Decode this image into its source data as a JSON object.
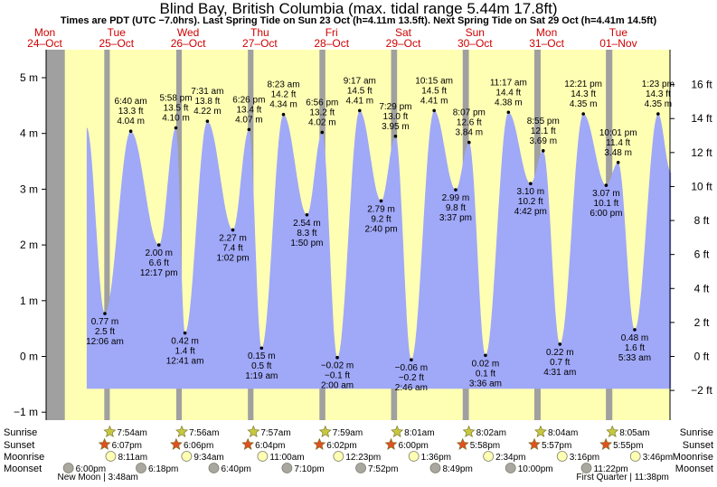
{
  "chart_data": {
    "type": "area",
    "title": "Blind Bay, British Columbia (max. tidal range 5.44m 17.8ft)",
    "subtitle": "Times are PDT (UTC −7.0hrs). Last Spring Tide on Sun 23 Oct (h=4.11m 13.5ft). Next Spring Tide on Sat 29 Oct (h=4.41m 14.5ft)",
    "y_left": {
      "range": [
        -1.2,
        5.3
      ],
      "ticks": [
        -1,
        0,
        1,
        2,
        3,
        4,
        5
      ],
      "tick_labels": [
        "−1 m",
        "0 m",
        "1 m",
        "2 m",
        "3 m",
        "4 m",
        "5 m"
      ]
    },
    "y_right": {
      "ticks": [
        -2,
        0,
        2,
        4,
        6,
        8,
        10,
        12,
        14,
        16
      ],
      "tick_labels": [
        "−2 ft",
        "0 ft",
        "2 ft",
        "4 ft",
        "6 ft",
        "8 ft",
        "10 ft",
        "12 ft",
        "14 ft",
        "16 ft"
      ]
    },
    "x_days": [
      {
        "dow": "Mon",
        "date": "24–Oct",
        "x": 0
      },
      {
        "dow": "Tue",
        "date": "25–Oct",
        "x": 1
      },
      {
        "dow": "Wed",
        "date": "26–Oct",
        "x": 2
      },
      {
        "dow": "Thu",
        "date": "27–Oct",
        "x": 3
      },
      {
        "dow": "Fri",
        "date": "28–Oct",
        "x": 4
      },
      {
        "dow": "Sat",
        "date": "29–Oct",
        "x": 5
      },
      {
        "dow": "Sun",
        "date": "30–Oct",
        "x": 6
      },
      {
        "dow": "Mon",
        "date": "31–Oct",
        "x": 7
      },
      {
        "dow": "Tue",
        "date": "01–Nov",
        "x": 8
      }
    ],
    "daylight": [
      {
        "rise": -0.3,
        "set": 0.25
      },
      {
        "rise": 0.327,
        "set": 1.254
      },
      {
        "rise": 1.331,
        "set": 2.253
      },
      {
        "rise": 2.331,
        "set": 3.251
      },
      {
        "rise": 3.333,
        "set": 4.25
      },
      {
        "rise": 4.334,
        "set": 5.249
      },
      {
        "rise": 5.335,
        "set": 6.248
      },
      {
        "rise": 6.336,
        "set": 7.246
      },
      {
        "rise": 7.336,
        "set": 8.3
      }
    ],
    "tides": [
      {
        "x": 0.005,
        "m": 4.11,
        "labels": [],
        "type": "start"
      },
      {
        "x": 0.2583,
        "m": 0.77,
        "labels": [
          "0.77 m",
          "2.5 ft",
          "12:06 am"
        ],
        "type": "low"
      },
      {
        "x": 0.6194,
        "m": 4.04,
        "labels": [
          "6:40 am",
          "13.3 ft",
          "4.04 m"
        ],
        "type": "high"
      },
      {
        "x": 1.0118,
        "m": 2.0,
        "labels": [
          "2.00 m",
          "6.6 ft",
          "12:17 pm"
        ],
        "type": "low"
      },
      {
        "x": 1.2486,
        "m": 4.1,
        "labels": [
          "5:58 pm",
          "13.5 ft",
          "4.10 m"
        ],
        "type": "high"
      },
      {
        "x": 1.3757,
        "m": 0.42,
        "labels": [
          "0.42 m",
          "1.4 ft",
          "12:41 am"
        ],
        "type": "low"
      },
      {
        "x": 1.6882,
        "m": 4.22,
        "labels": [
          "7:31 am",
          "13.8 ft",
          "4.22 m"
        ],
        "type": "high"
      },
      {
        "x": 2.0431,
        "m": 2.27,
        "labels": [
          "2.27 m",
          "7.4 ft",
          "1:02 pm"
        ],
        "type": "low"
      },
      {
        "x": 2.2681,
        "m": 4.07,
        "labels": [
          "6:26 pm",
          "13.4 ft",
          "4.07 m"
        ],
        "type": "high"
      },
      {
        "x": 2.4438,
        "m": 0.15,
        "labels": [
          "0.15 m",
          "0.5 ft",
          "1:19 am"
        ],
        "type": "low"
      },
      {
        "x": 2.7493,
        "m": 4.34,
        "labels": [
          "8:23 am",
          "14.2 ft",
          "4.34 m"
        ],
        "type": "high"
      },
      {
        "x": 3.0764,
        "m": 2.54,
        "labels": [
          "2.54 m",
          "8.3 ft",
          "1:50 pm"
        ],
        "type": "low"
      },
      {
        "x": 3.2889,
        "m": 4.02,
        "labels": [
          "6:56 pm",
          "13.2 ft",
          "4.02 m"
        ],
        "type": "high"
      },
      {
        "x": 3.5,
        "m": -0.02,
        "labels": [
          "−0.02 m",
          "−0.1 ft",
          "2:00 am"
        ],
        "type": "low"
      },
      {
        "x": 3.8118,
        "m": 4.41,
        "labels": [
          "9:17 am",
          "14.5 ft",
          "4.41 m"
        ],
        "type": "high"
      },
      {
        "x": 4.1111,
        "m": 2.79,
        "labels": [
          "2.79 m",
          "9.2 ft",
          "2:40 pm"
        ],
        "type": "low"
      },
      {
        "x": 4.3118,
        "m": 3.95,
        "labels": [
          "7:29 pm",
          "13.0 ft",
          "3.95 m"
        ],
        "type": "high"
      },
      {
        "x": 4.5319,
        "m": -0.06,
        "labels": [
          "−0.06 m",
          "−0.2 ft",
          "2:46 am"
        ],
        "type": "low"
      },
      {
        "x": 4.8507,
        "m": 4.41,
        "labels": [
          "10:15 am",
          "14.5 ft",
          "4.41 m"
        ],
        "type": "high"
      },
      {
        "x": 5.1507,
        "m": 2.99,
        "labels": [
          "2.99 m",
          "9.8 ft",
          "3:37 pm"
        ],
        "type": "low"
      },
      {
        "x": 5.3382,
        "m": 3.84,
        "labels": [
          "8:07 pm",
          "12.6 ft",
          "3.84 m"
        ],
        "type": "high"
      },
      {
        "x": 5.5667,
        "m": 0.02,
        "labels": [
          "0.02 m",
          "0.1 ft",
          "3:36 am"
        ],
        "type": "low"
      },
      {
        "x": 5.8868,
        "m": 4.38,
        "labels": [
          "11:17 am",
          "14.4 ft",
          "4.38 m"
        ],
        "type": "high"
      },
      {
        "x": 6.1958,
        "m": 3.1,
        "labels": [
          "3.10 m",
          "10.2 ft",
          "4:42 pm"
        ],
        "type": "low"
      },
      {
        "x": 6.3715,
        "m": 3.69,
        "labels": [
          "8:55 pm",
          "12.1 ft",
          "3.69 m"
        ],
        "type": "high"
      },
      {
        "x": 6.6049,
        "m": 0.22,
        "labels": [
          "0.22 m",
          "0.7 ft",
          "4:31 am"
        ],
        "type": "low"
      },
      {
        "x": 6.9313,
        "m": 4.35,
        "labels": [
          "12:21 pm",
          "14.3 ft",
          "4.35 m"
        ],
        "type": "high"
      },
      {
        "x": 7.25,
        "m": 3.07,
        "labels": [
          "3.07 m",
          "10.1 ft",
          "6:00 pm"
        ],
        "type": "low"
      },
      {
        "x": 7.4174,
        "m": 3.48,
        "labels": [
          "10:01 pm",
          "11.4 ft",
          "3.48 m"
        ],
        "type": "high"
      },
      {
        "x": 7.6479,
        "m": 0.48,
        "labels": [
          "0.48 m",
          "1.6 ft",
          "5:33 am"
        ],
        "type": "low"
      },
      {
        "x": 7.9743,
        "m": 4.35,
        "labels": [
          "1:23 pm",
          "14.3 ft",
          "4.35 m"
        ],
        "type": "high"
      },
      {
        "x": 8.155,
        "m": 3.3,
        "labels": [],
        "type": "end"
      }
    ],
    "astro": {
      "row_labels": {
        "sunrise": "Sunrise",
        "sunset": "Sunset",
        "moonrise": "Moonrise",
        "moonset": "Moonset"
      },
      "sunrise": [
        {
          "x": 0.327,
          "t": "7:54am"
        },
        {
          "x": 1.331,
          "t": "7:56am"
        },
        {
          "x": 2.331,
          "t": "7:57am"
        },
        {
          "x": 3.333,
          "t": "7:59am"
        },
        {
          "x": 4.334,
          "t": "8:01am"
        },
        {
          "x": 5.335,
          "t": "8:02am"
        },
        {
          "x": 6.336,
          "t": "8:04am"
        },
        {
          "x": 7.336,
          "t": "8:05am"
        }
      ],
      "sunset": [
        {
          "x": 0.254,
          "t": "6:07pm"
        },
        {
          "x": 1.254,
          "t": "6:06pm"
        },
        {
          "x": 2.253,
          "t": "6:04pm"
        },
        {
          "x": 3.251,
          "t": "6:02pm"
        },
        {
          "x": 4.25,
          "t": "6:00pm"
        },
        {
          "x": 5.249,
          "t": "5:58pm"
        },
        {
          "x": 6.248,
          "t": "5:57pm"
        },
        {
          "x": 7.246,
          "t": "5:55pm"
        }
      ],
      "moonrise": [
        {
          "x": 0.34,
          "t": "8:11am"
        },
        {
          "x": 1.398,
          "t": "9:34am"
        },
        {
          "x": 2.458,
          "t": "11:00am"
        },
        {
          "x": 3.516,
          "t": "12:23pm"
        },
        {
          "x": 4.567,
          "t": "1:36pm"
        },
        {
          "x": 5.607,
          "t": "2:34pm"
        },
        {
          "x": 6.636,
          "t": "3:16pm"
        },
        {
          "x": 7.657,
          "t": "3:46pm"
        }
      ],
      "moonset": [
        {
          "x": -0.25,
          "t": "6:00pm"
        },
        {
          "x": 0.763,
          "t": "6:18pm"
        },
        {
          "x": 1.778,
          "t": "6:40pm"
        },
        {
          "x": 2.798,
          "t": "7:10pm"
        },
        {
          "x": 3.828,
          "t": "7:52pm"
        },
        {
          "x": 4.867,
          "t": "8:49pm"
        },
        {
          "x": 5.917,
          "t": "10:00pm"
        },
        {
          "x": 6.974,
          "t": "11:22pm"
        }
      ],
      "moon_phases": [
        {
          "x": 0.16,
          "t": "New Moon | 3:48am"
        },
        {
          "x": 7.48,
          "t": "First Quarter | 11:38pm"
        }
      ]
    },
    "colors": {
      "night": "#a0a0a0",
      "day": "#ffffb4",
      "water": "#a0a8f8",
      "day_label": "#d00000",
      "sun_icon": "#c8c840",
      "sunset_icon": "#e05020",
      "moonrise_icon": "#ffffb4",
      "moonset_icon": "#a8a8a0"
    }
  }
}
